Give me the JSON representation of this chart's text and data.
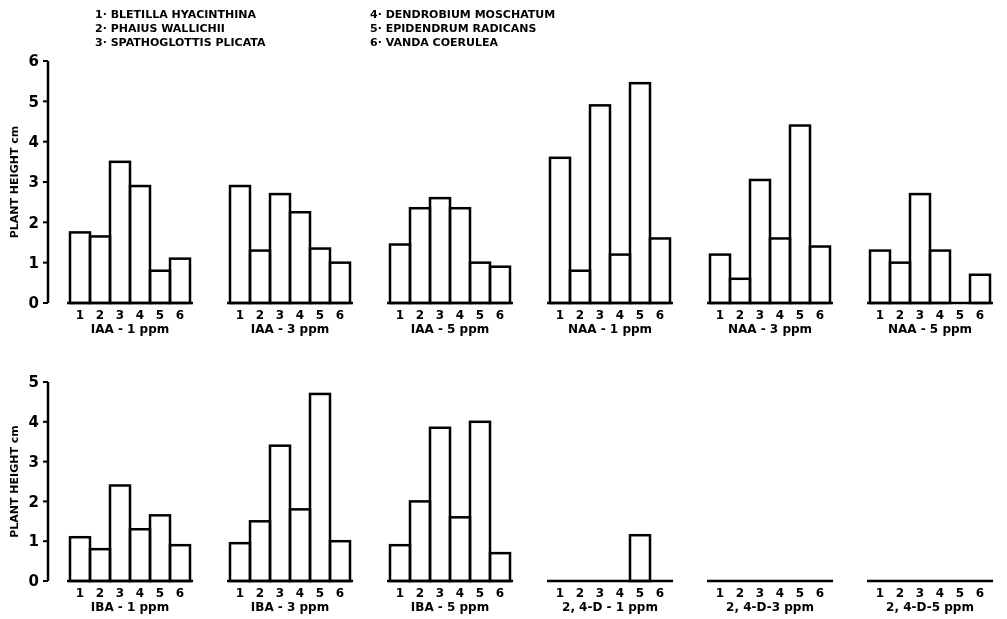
{
  "chart_data": [
    {
      "type": "bar",
      "xlabel": "IAA - 1 ppm",
      "ylabel": "PLANT HEIGHT cm",
      "annotations": [
        "1· BLETILLA HYACINTHINA",
        "2· PHAIUS WALLICHII",
        "3· SPATHOGLOTTIS PLICATA",
        "4· DENDROBIUM MOSCHATUM",
        "5· EPIDENDRUM RADICANS",
        "6· VANDA COERULEA"
      ],
      "categories": [
        "1",
        "2",
        "3",
        "4",
        "5",
        "6"
      ],
      "values": [
        1.75,
        1.65,
        3.5,
        2.9,
        0.8,
        1.1
      ],
      "color": "#000000",
      "ylim": [
        0,
        6
      ],
      "yticks": [
        0,
        1,
        2,
        3,
        4,
        5,
        6
      ]
    },
    {
      "type": "bar",
      "xlabel": "IAA - 3 ppm",
      "categories": [
        "1",
        "2",
        "3",
        "4",
        "5",
        "6"
      ],
      "values": [
        2.9,
        1.3,
        2.7,
        2.25,
        1.35,
        1.0
      ],
      "color": "#000000",
      "ylim": [
        0,
        6
      ],
      "tick_labels": "x"
    },
    {
      "type": "bar",
      "xlabel": "IAA - 5 ppm",
      "categories": [
        "1",
        "2",
        "3",
        "4",
        "5",
        "6"
      ],
      "values": [
        1.45,
        2.35,
        2.6,
        2.35,
        1.0,
        0.9
      ],
      "color": "#000000",
      "ylim": [
        0,
        6
      ],
      "tick_labels": "x"
    },
    {
      "type": "bar",
      "xlabel": "NAA - 1 ppm",
      "categories": [
        "1",
        "2",
        "3",
        "4",
        "5",
        "6"
      ],
      "values": [
        3.6,
        0.8,
        4.9,
        1.2,
        5.45,
        1.6
      ],
      "color": "#000000",
      "ylim": [
        0,
        6
      ],
      "tick_labels": "x"
    },
    {
      "type": "bar",
      "xlabel": "NAA - 3 ppm",
      "categories": [
        "1",
        "2",
        "3",
        "4",
        "5",
        "6"
      ],
      "values": [
        1.2,
        0.6,
        3.05,
        1.6,
        4.4,
        1.4
      ],
      "color": "#000000",
      "ylim": [
        0,
        6
      ],
      "tick_labels": "x"
    },
    {
      "type": "bar",
      "xlabel": "NAA - 5 ppm",
      "categories": [
        "1",
        "2",
        "3",
        "4",
        "5",
        "6"
      ],
      "values": [
        1.3,
        1.0,
        2.7,
        1.3,
        0,
        0.7
      ],
      "color": "#000000",
      "ylim": [
        0,
        6
      ],
      "tick_labels": "x"
    },
    {
      "type": "bar",
      "xlabel": "IBA - 1 ppm",
      "ylabel": "PLANT HEIGHT cm",
      "categories": [
        "1",
        "2",
        "3",
        "4",
        "5",
        "6"
      ],
      "values": [
        1.1,
        0.8,
        2.4,
        1.3,
        1.65,
        0.9
      ],
      "color": "#000000",
      "ylim": [
        0,
        5
      ],
      "yticks": [
        0,
        1,
        2,
        3,
        4,
        5
      ]
    },
    {
      "type": "bar",
      "xlabel": "IBA - 3 ppm",
      "categories": [
        "1",
        "2",
        "3",
        "4",
        "5",
        "6"
      ],
      "values": [
        0.95,
        1.5,
        3.4,
        1.8,
        4.7,
        1.0
      ],
      "color": "#000000",
      "ylim": [
        0,
        5
      ],
      "tick_labels": "x"
    },
    {
      "type": "bar",
      "xlabel": "IBA - 5 ppm",
      "categories": [
        "1",
        "2",
        "3",
        "4",
        "5",
        "6"
      ],
      "values": [
        0.9,
        2.0,
        3.85,
        1.6,
        4.0,
        0.7
      ],
      "color": "#000000",
      "ylim": [
        0,
        5
      ],
      "tick_labels": "x"
    },
    {
      "type": "bar",
      "xlabel": "2, 4-D - 1 ppm",
      "categories": [
        "1",
        "2",
        "3",
        "4",
        "5",
        "6"
      ],
      "values": [
        0,
        0,
        0,
        0,
        1.15,
        0
      ],
      "color": "#000000",
      "ylim": [
        0,
        5
      ],
      "tick_labels": "x"
    },
    {
      "type": "bar",
      "xlabel": "2, 4-D-3 ppm",
      "categories": [
        "1",
        "2",
        "3",
        "4",
        "5",
        "6"
      ],
      "values": [
        0,
        0,
        0,
        0,
        0,
        0
      ],
      "color": "#000000",
      "ylim": [
        0,
        5
      ],
      "tick_labels": "x"
    },
    {
      "type": "bar",
      "xlabel": "2, 4-D-5 ppm",
      "categories": [
        "1",
        "2",
        "3",
        "4",
        "5",
        "6"
      ],
      "values": [
        0,
        0,
        0,
        0,
        0,
        0
      ],
      "color": "#000000",
      "ylim": [
        0,
        5
      ],
      "tick_labels": "x"
    }
  ]
}
